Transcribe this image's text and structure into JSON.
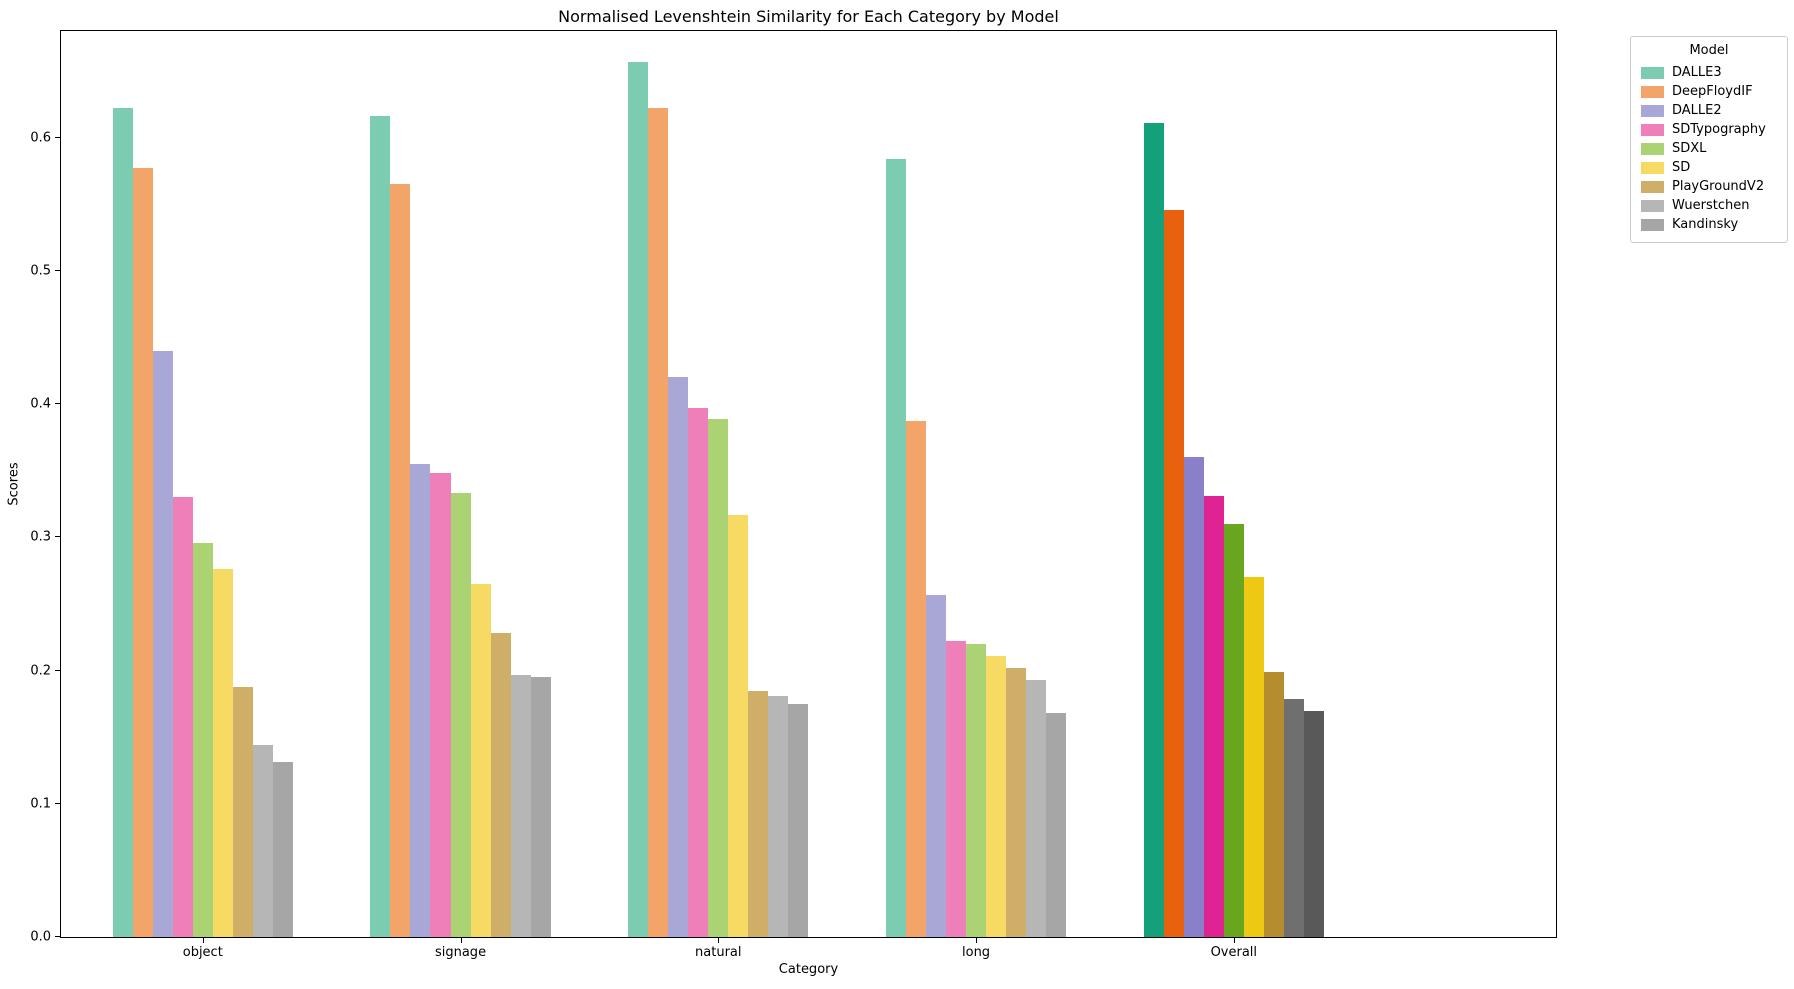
{
  "chart_data": {
    "type": "bar",
    "title": "Normalised Levenshtein Similarity for Each Category by Model",
    "xlabel": "Category",
    "ylabel": "Scores",
    "categories": [
      "object",
      "signage",
      "natural",
      "long",
      "Overall"
    ],
    "ytick_values": [
      0.0,
      0.1,
      0.2,
      0.3,
      0.4,
      0.5,
      0.6
    ],
    "ytick_labels": [
      "0.0",
      "0.1",
      "0.2",
      "0.3",
      "0.4",
      "0.5",
      "0.6"
    ],
    "ylim": [
      0,
      0.68
    ],
    "grid": false,
    "legend": {
      "title": "Model",
      "position": "upper-right-outside"
    },
    "note": "Overall group rendered in saturated colors; per-category groups rendered in light colors",
    "series": [
      {
        "name": "DALLE3",
        "color_light": "#7cccb2",
        "color_strong": "#13a07a",
        "values": [
          0.622,
          0.616,
          0.657,
          0.584,
          0.611
        ]
      },
      {
        "name": "DeepFloydIF",
        "color_light": "#f2a469",
        "color_strong": "#e8610e",
        "values": [
          0.577,
          0.565,
          0.622,
          0.387,
          0.546
        ]
      },
      {
        "name": "DALLE2",
        "color_light": "#a9a7d6",
        "color_strong": "#8a7fc9",
        "values": [
          0.44,
          0.355,
          0.42,
          0.257,
          0.36
        ]
      },
      {
        "name": "SDTypography",
        "color_light": "#ee7fb8",
        "color_strong": "#e02392",
        "values": [
          0.33,
          0.348,
          0.397,
          0.222,
          0.331
        ]
      },
      {
        "name": "SDXL",
        "color_light": "#abd273",
        "color_strong": "#68a620",
        "values": [
          0.296,
          0.333,
          0.389,
          0.22,
          0.31
        ]
      },
      {
        "name": "SD",
        "color_light": "#f6da63",
        "color_strong": "#eec913",
        "values": [
          0.276,
          0.265,
          0.317,
          0.211,
          0.27
        ]
      },
      {
        "name": "PlayGroundV2",
        "color_light": "#cfae67",
        "color_strong": "#b68d2e",
        "values": [
          0.188,
          0.228,
          0.185,
          0.202,
          0.199
        ]
      },
      {
        "name": "Wuerstchen",
        "color_light": "#b6b6b6",
        "color_strong": "#6f6f6f",
        "values": [
          0.144,
          0.197,
          0.181,
          0.193,
          0.179
        ]
      },
      {
        "name": "Kandinsky",
        "color_light": "#a6a6a6",
        "color_strong": "#595959",
        "values": [
          0.131,
          0.195,
          0.175,
          0.168,
          0.17
        ]
      }
    ]
  }
}
